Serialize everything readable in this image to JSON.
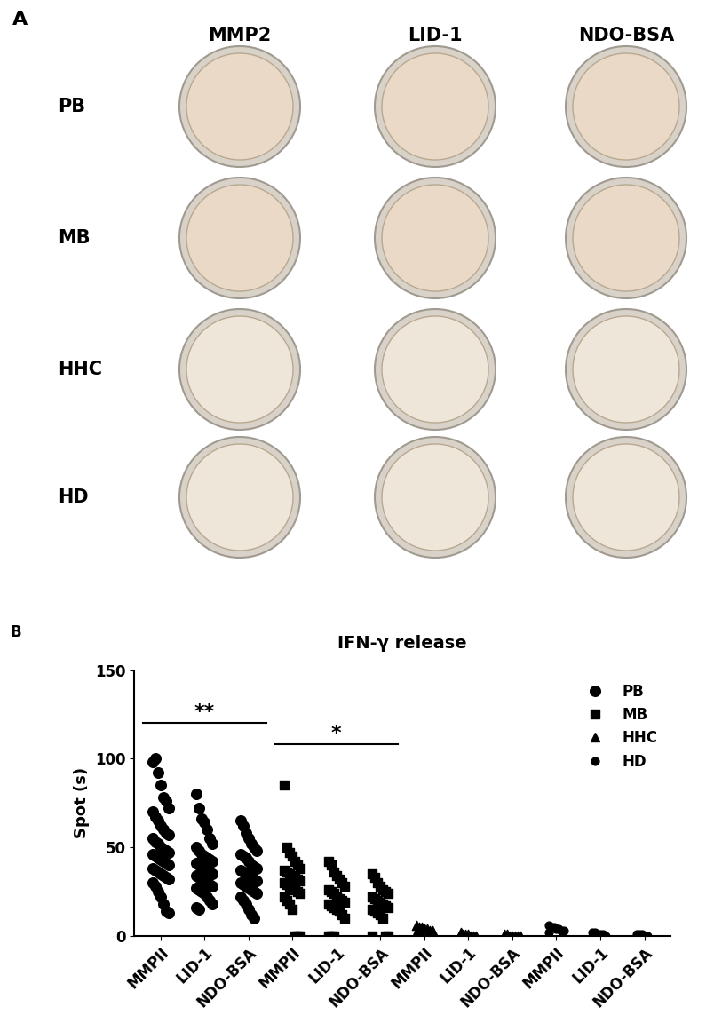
{
  "panel_a": {
    "label": "A",
    "columns": [
      "MMP2",
      "LID-1",
      "NDO-BSA"
    ],
    "rows": [
      "PB",
      "MB",
      "HHC",
      "HD"
    ]
  },
  "chart_data": {
    "type": "scatter",
    "panel_label": "B",
    "title": "IFN-γ release",
    "y_label": "Spot (s)",
    "categories": [
      "MMPII",
      "LID-1",
      "NDO-BSA",
      "MMPII",
      "LID-1",
      "NDO-BSA",
      "MMPII",
      "LID-1",
      "NDO-BSA",
      "MMPII",
      "LID-1",
      "NDO-BSA"
    ],
    "ylim": [
      0,
      150
    ],
    "yticks": [
      0,
      50,
      100,
      150
    ],
    "grid": false,
    "legend": "upper right",
    "series": [
      {
        "name": "PB",
        "marker": "o",
        "color": "#000000",
        "values": [
          [
            98,
            100,
            92,
            85,
            78,
            76,
            72,
            70,
            67,
            65,
            62,
            60,
            58,
            57,
            55,
            53,
            52,
            50,
            49,
            48,
            47,
            46,
            45,
            44,
            43,
            42,
            41,
            40,
            38,
            37,
            36,
            35,
            34,
            33,
            32,
            30,
            28,
            25,
            22,
            18,
            14,
            13
          ],
          [
            80,
            72,
            66,
            64,
            60,
            55,
            52,
            50,
            48,
            46,
            45,
            44,
            43,
            42,
            41,
            40,
            39,
            38,
            37,
            36,
            35,
            34,
            33,
            32,
            31,
            30,
            29,
            28,
            27,
            26,
            25,
            24,
            22,
            20,
            18,
            16,
            15
          ],
          [
            65,
            62,
            58,
            55,
            52,
            50,
            48,
            46,
            45,
            44,
            42,
            40,
            39,
            38,
            37,
            36,
            35,
            34,
            33,
            32,
            31,
            30,
            29,
            28,
            27,
            26,
            25,
            24,
            22,
            20,
            18,
            15,
            12,
            10
          ],
          null,
          null,
          null,
          null,
          null,
          null,
          null,
          null,
          null
        ]
      },
      {
        "name": "MB",
        "marker": "s",
        "color": "#000000",
        "values": [
          null,
          null,
          null,
          [
            85,
            50,
            47,
            45,
            42,
            40,
            38,
            37,
            36,
            35,
            34,
            33,
            32,
            31,
            30,
            29,
            28,
            27,
            26,
            25,
            24,
            22,
            20,
            18,
            15,
            0,
            0,
            0
          ],
          [
            42,
            40,
            36,
            34,
            32,
            30,
            28,
            26,
            25,
            24,
            22,
            21,
            20,
            19,
            18,
            17,
            16,
            15,
            14,
            12,
            10,
            0,
            0,
            0
          ],
          [
            35,
            33,
            30,
            28,
            26,
            25,
            24,
            22,
            21,
            20,
            19,
            18,
            17,
            16,
            15,
            14,
            13,
            12,
            10,
            0,
            0,
            0
          ],
          null,
          null,
          null,
          null,
          null,
          null
        ]
      },
      {
        "name": "HHC",
        "marker": "^",
        "color": "#000000",
        "values": [
          null,
          null,
          null,
          null,
          null,
          null,
          [
            6,
            5,
            5,
            4,
            4,
            3,
            3,
            2,
            2,
            1
          ],
          [
            2,
            1,
            1,
            1,
            0,
            0,
            0,
            0
          ],
          [
            1,
            1,
            0,
            0,
            0,
            0,
            0
          ],
          null,
          null,
          null
        ]
      },
      {
        "name": "HD",
        "marker": "o",
        "color": "#000000",
        "values": [
          null,
          null,
          null,
          null,
          null,
          null,
          null,
          null,
          null,
          [
            6,
            5,
            5,
            4,
            4,
            3,
            3,
            2
          ],
          [
            2,
            2,
            1,
            1,
            1,
            0
          ],
          [
            1,
            1,
            1,
            0,
            0
          ]
        ]
      }
    ],
    "annotations": [
      {
        "text": "**",
        "from": 0,
        "to": 2,
        "y": 120
      },
      {
        "text": "*",
        "from": 3,
        "to": 5,
        "y": 108
      }
    ]
  }
}
